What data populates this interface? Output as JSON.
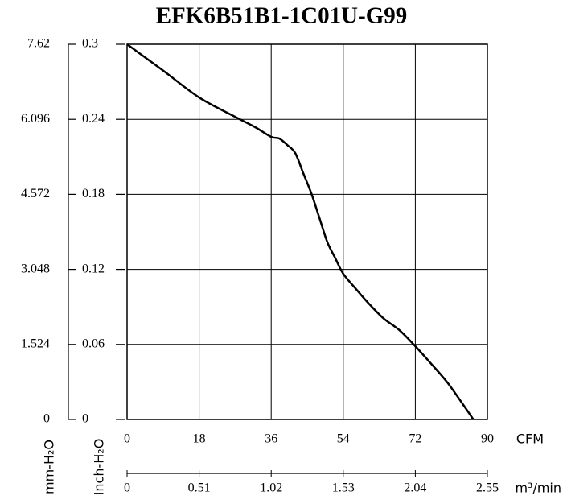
{
  "chart_data": {
    "type": "line",
    "title": "EFK6B51B1-1C01U-G99",
    "x": [
      0,
      9,
      18,
      27,
      32,
      36,
      38,
      40,
      42,
      44,
      46,
      48,
      50,
      52,
      54,
      57,
      60,
      64,
      68,
      72,
      76,
      80,
      84,
      86.5
    ],
    "values": [
      0.3,
      0.279,
      0.2575,
      0.242,
      0.2337,
      0.226,
      0.2247,
      0.2195,
      0.213,
      0.197,
      0.181,
      0.1616,
      0.142,
      0.129,
      0.1165,
      0.105,
      0.094,
      0.081,
      0.0715,
      0.0586,
      0.0444,
      0.0296,
      0.0116,
      0
    ],
    "color": "#000000",
    "xlim": [
      0,
      90
    ],
    "xticks": [
      0,
      18,
      36,
      54,
      72,
      90
    ],
    "x_label": "CFM",
    "x2lim": [
      0,
      2.55
    ],
    "x2ticks": [
      0,
      0.51,
      1.02,
      1.53,
      2.04,
      2.55
    ],
    "x2_label": "m³/min",
    "ylim": [
      0,
      0.3
    ],
    "yticks": [
      0,
      0.06,
      0.12,
      0.18,
      0.24,
      0.3
    ],
    "y_label": "Inch-H₂O",
    "y2lim": [
      0,
      7.62
    ],
    "y2ticks": [
      0,
      1.524,
      3.048,
      4.572,
      6.096,
      7.62
    ],
    "y2_label": "mm-H₂O",
    "grid": true
  }
}
